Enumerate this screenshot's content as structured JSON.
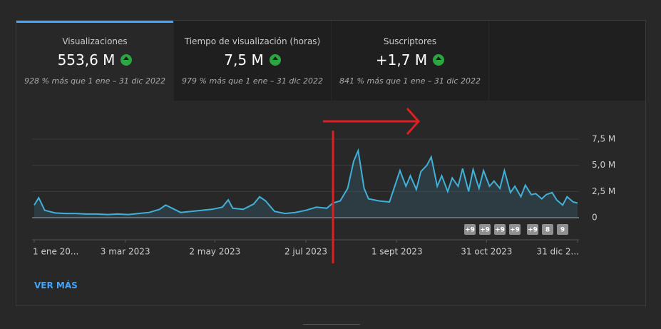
{
  "tabs": [
    {
      "label": "Visualizaciones",
      "value": "553,6 M",
      "comparison": "928 % más que 1 ene – 31 dic 2022"
    },
    {
      "label": "Tiempo de visualización (horas)",
      "value": "7,5 M",
      "comparison": "979 % más que 1 ene – 31 dic 2022"
    },
    {
      "label": "Suscriptores",
      "value": "+1,7 M",
      "comparison": "841 % más que 1 ene – 31 dic 2022"
    }
  ],
  "badges": [
    "+9",
    "+9",
    "+9",
    "+9",
    "+9",
    "8",
    "9"
  ],
  "link": "VER MÁS",
  "chart_data": {
    "type": "area",
    "color": "#41b0d9",
    "x": [
      0,
      3,
      7,
      14,
      21,
      28,
      35,
      42,
      49,
      56,
      63,
      70,
      77,
      84,
      88,
      91,
      98,
      105,
      112,
      119,
      126,
      130,
      133,
      140,
      147,
      151,
      155,
      161,
      168,
      175,
      182,
      189,
      196,
      200,
      205,
      210,
      214,
      217,
      221,
      224,
      231,
      238,
      245,
      249,
      252,
      256,
      259,
      263,
      266,
      270,
      273,
      277,
      280,
      284,
      287,
      291,
      294,
      298,
      301,
      305,
      308,
      312,
      315,
      319,
      322,
      326,
      329,
      333,
      336,
      340,
      343,
      347,
      350,
      354,
      357,
      361,
      364
    ],
    "values": [
      1.2,
      1.9,
      0.7,
      0.45,
      0.4,
      0.4,
      0.35,
      0.35,
      0.3,
      0.35,
      0.3,
      0.4,
      0.5,
      0.8,
      1.2,
      1.0,
      0.5,
      0.6,
      0.7,
      0.8,
      1.0,
      1.7,
      0.9,
      0.8,
      1.3,
      2.0,
      1.6,
      0.6,
      0.4,
      0.5,
      0.7,
      1.0,
      0.9,
      1.4,
      1.6,
      2.8,
      5.4,
      6.4,
      2.8,
      1.8,
      1.6,
      1.5,
      4.5,
      3.0,
      4.0,
      2.7,
      4.4,
      5.0,
      5.8,
      3.0,
      4.0,
      2.5,
      3.8,
      3.0,
      4.7,
      2.5,
      4.6,
      2.8,
      4.5,
      3.0,
      3.5,
      2.8,
      4.5,
      2.4,
      3.0,
      2.0,
      3.1,
      2.2,
      2.3,
      1.8,
      2.2,
      2.4,
      1.7,
      1.2,
      2.0,
      1.5,
      1.4
    ],
    "xlim": [
      0,
      364
    ],
    "xticks": [
      {
        "value": 0,
        "label": "1 ene 20..."
      },
      {
        "value": 61,
        "label": "3 mar 2023"
      },
      {
        "value": 121,
        "label": "2 may 2023"
      },
      {
        "value": 182,
        "label": "2 jul 2023"
      },
      {
        "value": 243,
        "label": "1 sept 2023"
      },
      {
        "value": 303,
        "label": "31 oct 2023"
      },
      {
        "value": 364,
        "label": "31 dic 2..."
      }
    ],
    "ylim": [
      0,
      7.5
    ],
    "yticks": [
      0,
      {
        "value": 2.5,
        "label": "2,5 M"
      },
      {
        "value": 5,
        "label": "5,0 M"
      },
      {
        "value": 7.5,
        "label": "7,5 M"
      }
    ],
    "grid": true
  }
}
